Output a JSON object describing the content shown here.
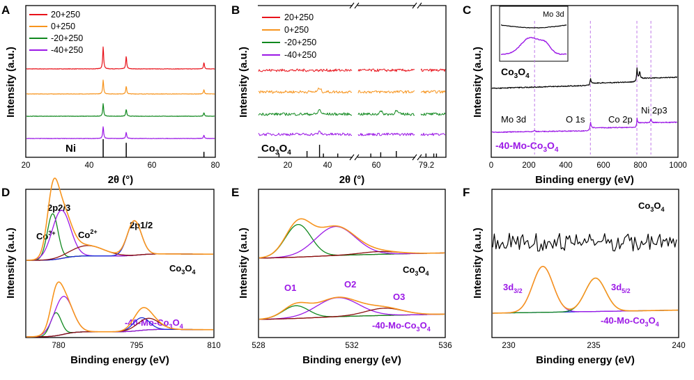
{
  "colors": {
    "red": "#e8121a",
    "orange": "#f7941d",
    "green": "#10881e",
    "purple": "#9b18e6",
    "black": "#000000",
    "blue": "#1a2bd9",
    "maroon": "#8b0f0f",
    "dashed": "#c07ae8"
  },
  "chart_data": [
    {
      "panel": "A",
      "type": "line",
      "title": "",
      "xlabel": "2θ (°)",
      "ylabel": "Intensity (a.u.)",
      "xlim": [
        20,
        80
      ],
      "xticks": [
        20,
        40,
        60,
        80
      ],
      "legend": [
        "20+250",
        "0+250",
        "-20+250",
        "-40+250"
      ],
      "series": [
        {
          "name": "20+250",
          "color": "red",
          "baseline": 3.5,
          "peaks": [
            [
              44.5,
              1.6
            ],
            [
              51.8,
              0.9
            ],
            [
              76.4,
              0.45
            ]
          ]
        },
        {
          "name": "0+250",
          "color": "orange",
          "baseline": 2.5,
          "peaks": [
            [
              44.5,
              1.0
            ],
            [
              51.8,
              0.55
            ],
            [
              76.4,
              0.3
            ]
          ]
        },
        {
          "name": "-20+250",
          "color": "green",
          "baseline": 1.5,
          "peaks": [
            [
              44.5,
              0.9
            ],
            [
              51.8,
              0.5
            ],
            [
              76.4,
              0.25
            ]
          ]
        },
        {
          "name": "-40+250",
          "color": "purple",
          "baseline": 0.5,
          "peaks": [
            [
              44.5,
              0.85
            ],
            [
              51.8,
              0.45
            ],
            [
              76.4,
              0.25
            ]
          ]
        }
      ],
      "reference": {
        "label": "Ni",
        "lines": [
          [
            44.5,
            1.0
          ],
          [
            51.8,
            0.8
          ],
          [
            76.4,
            0.3
          ]
        ]
      }
    },
    {
      "panel": "B",
      "type": "line",
      "title": "",
      "xlabel": "2θ (°)",
      "ylabel": "Intensity (a.u.)",
      "broken_x_axis": true,
      "xticks": [
        "20",
        "40",
        "60",
        "79.2"
      ],
      "legend": [
        "20+250",
        "0+250",
        "-20+250",
        "-40+250"
      ],
      "series": [
        {
          "name": "20+250",
          "color": "red",
          "baseline": 3.5
        },
        {
          "name": "0+250",
          "color": "orange",
          "baseline": 2.5,
          "peaks": [
            [
              36.8,
              0.3
            ]
          ]
        },
        {
          "name": "-20+250",
          "color": "green",
          "baseline": 1.5,
          "peaks": [
            [
              36.8,
              0.35
            ],
            [
              59.4,
              0.2
            ],
            [
              65.2,
              0.25
            ]
          ]
        },
        {
          "name": "-40+250",
          "color": "purple",
          "baseline": 0.5,
          "peaks": [
            [
              36.8,
              0.2
            ]
          ]
        }
      ],
      "reference": {
        "label": "Co3O4",
        "lines": [
          [
            19,
            0.3
          ],
          [
            31.3,
            0.5
          ],
          [
            36.8,
            1.0
          ],
          [
            38.5,
            0.3
          ],
          [
            44.8,
            0.3
          ],
          [
            55.7,
            0.3
          ],
          [
            59.4,
            0.4
          ],
          [
            65.2,
            0.5
          ],
          [
            74.1,
            0.3
          ],
          [
            77.3,
            0.3
          ],
          [
            78.4,
            0.3
          ]
        ]
      }
    },
    {
      "panel": "C",
      "type": "line",
      "title": "",
      "xlabel": "Binding energy (eV)",
      "ylabel": "Intensity (a.u.)",
      "xlim": [
        0,
        1000
      ],
      "xticks": [
        0,
        200,
        400,
        600,
        800,
        1000
      ],
      "series": [
        {
          "name": "Co3O4",
          "color": "black",
          "peaks": [
            [
              531,
              0.8
            ],
            [
              780,
              1.4
            ],
            [
              795,
              0.9
            ]
          ]
        },
        {
          "name": "-40-Mo-Co3O4",
          "color": "purple",
          "peaks": [
            [
              232,
              0.15
            ],
            [
              531,
              0.7
            ],
            [
              780,
              0.5
            ],
            [
              855,
              0.4
            ]
          ]
        }
      ],
      "dashed_lines_x": [
        232,
        531,
        780,
        855
      ],
      "annotations": [
        "Mo 3d",
        "O 1s",
        "Co 2p",
        "Ni 2p3"
      ],
      "inset_title": "Mo 3d",
      "labels": [
        "Co3O4",
        "-40-Mo-Co3O4"
      ]
    },
    {
      "panel": "D",
      "type": "line",
      "title": "",
      "xlabel": "Binding energy (eV)",
      "ylabel": "Intensity (a.u.)",
      "xlim": [
        775,
        810
      ],
      "xticks": [
        780,
        795,
        810
      ],
      "fit_peaks_top": [
        [
          780.0,
          2.0,
          1.0,
          "green"
        ],
        [
          781.6,
          2.1,
          1.7,
          "purple"
        ],
        [
          795.2,
          1.5,
          1.3,
          "blue"
        ],
        [
          786.5,
          0.45,
          3.0,
          "maroon"
        ]
      ],
      "fit_peaks_bottom": [
        [
          780.6,
          1.0,
          1.0,
          "green"
        ],
        [
          782.0,
          1.65,
          1.7,
          "purple"
        ],
        [
          796.5,
          0.55,
          1.5,
          "blue"
        ],
        [
          797.8,
          0.5,
          2.0,
          "maroon"
        ]
      ],
      "annotations": [
        "2p2/3",
        "Co3+",
        "Co2+",
        "2p1/2"
      ],
      "labels": [
        "Co3O4",
        "-40-Mo-Co3O4"
      ]
    },
    {
      "panel": "E",
      "type": "line",
      "title": "",
      "xlabel": "Binding energy (eV)",
      "ylabel": "Intensity (a.u.)",
      "xlim": [
        528,
        536
      ],
      "xticks": [
        528,
        532,
        536
      ],
      "fit_peaks_top": [
        [
          529.7,
          3.6,
          0.55,
          "green"
        ],
        [
          531.3,
          3.2,
          0.85,
          "purple"
        ],
        [
          533.2,
          0.3,
          0.8,
          "maroon"
        ]
      ],
      "fit_peaks_bottom": [
        [
          529.6,
          1.4,
          0.55,
          "green"
        ],
        [
          531.4,
          2.1,
          0.9,
          "purple"
        ],
        [
          533.4,
          0.8,
          0.8,
          "maroon"
        ]
      ],
      "annotations": [
        "O1",
        "O2",
        "O3"
      ],
      "labels": [
        "Co3O4",
        "-40-Mo-Co3O4"
      ]
    },
    {
      "panel": "F",
      "type": "line",
      "title": "",
      "xlabel": "Binding energy (eV)",
      "ylabel": "Intensity (a.u.)",
      "xlim": [
        229,
        240
      ],
      "xticks": [
        230,
        235,
        240
      ],
      "fit_peaks_bottom": [
        [
          232.0,
          3.3,
          0.6,
          "purple"
        ],
        [
          235.1,
          2.4,
          0.6,
          "green"
        ]
      ],
      "annotations": [
        "3d3/2",
        "3d5/2"
      ],
      "labels": [
        "Co3O4",
        "-40-Mo-Co3O4"
      ]
    }
  ],
  "text": {
    "pA": "A",
    "pB": "B",
    "pC": "C",
    "pD": "D",
    "pE": "E",
    "pF": "F",
    "intensity": "Intensity (a.u.)",
    "two_theta": "2θ (°)",
    "binding_energy": "Binding energy (eV)",
    "ni": "Ni",
    "legend_a": [
      "20+250",
      "0+250",
      "-20+250",
      "-40+250"
    ],
    "legend_b": [
      "20+250",
      "0+250",
      "-20+250",
      "-40+250"
    ],
    "a_ticks": [
      "20",
      "40",
      "60",
      "80"
    ],
    "b_ticks": [
      "20",
      "40",
      "60",
      "79.2"
    ],
    "c_ticks": [
      "0",
      "200",
      "400",
      "600",
      "800",
      "1000"
    ],
    "d_ticks": [
      "780",
      "795",
      "810"
    ],
    "e_ticks": [
      "528",
      "532",
      "536"
    ],
    "f_ticks": [
      "230",
      "235",
      "240"
    ],
    "c_inset": "Mo 3d",
    "c_mo3d": "Mo 3d",
    "c_o1s": "O 1s",
    "c_co2p": "Co 2p",
    "c_ni2p3": "Ni 2p3",
    "d_2p23": "2p2/3",
    "d_co3": "Co",
    "d_co3sup": "3+",
    "d_co2": "Co",
    "d_co2sup": "2+",
    "d_2p12": "2p1/2",
    "e_o1": "O1",
    "e_o2": "O2",
    "e_o3": "O3",
    "f_3d32": "3d",
    "f_3d32sub": "3/2",
    "f_3d52": "3d",
    "f_3d52sub": "5/2",
    "co3o4_a": "Co",
    "co3o4_b": "3",
    "co3o4_c": "O",
    "co3o4_d": "4",
    "mo_prefix": "-40-Mo-Co"
  }
}
